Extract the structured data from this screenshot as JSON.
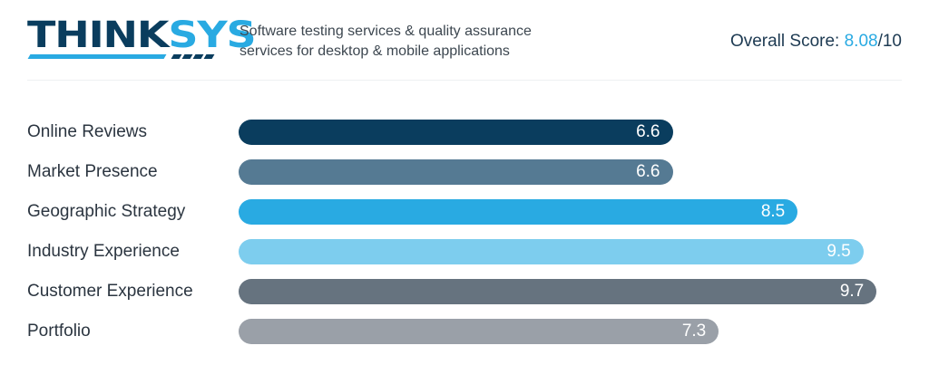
{
  "brand": {
    "logo_text": "THINKSYS",
    "tagline_line1": "Software testing services & quality assurance",
    "tagline_line2": "services for desktop & mobile applications"
  },
  "overall": {
    "label": "Overall Score:",
    "value": "8.08",
    "suffix": "/10"
  },
  "chart_data": {
    "type": "bar",
    "orientation": "horizontal",
    "xlim": [
      0,
      10
    ],
    "categories": [
      "Online Reviews",
      "Market Presence",
      "Geographic Strategy",
      "Industry Experience",
      "Customer Experience",
      "Portfolio"
    ],
    "values": [
      6.6,
      6.6,
      8.5,
      9.5,
      9.7,
      7.3
    ],
    "colors": [
      "#0a3d5e",
      "#557a93",
      "#29aae2",
      "#7dcdee",
      "#66737f",
      "#9aa0a8"
    ]
  }
}
